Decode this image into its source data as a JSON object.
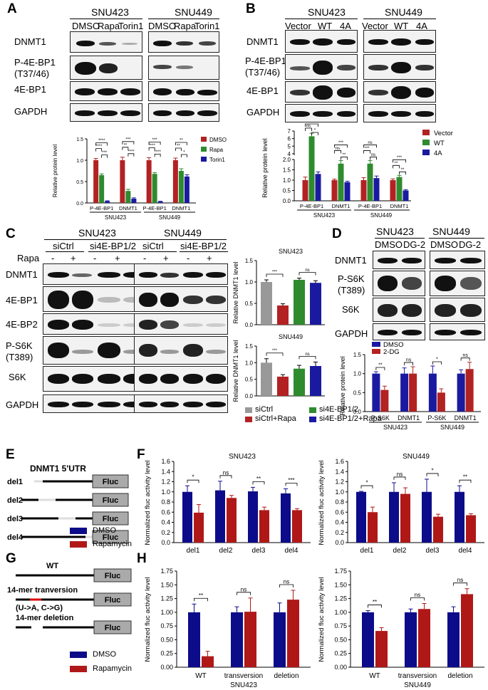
{
  "panel_letters": [
    "A",
    "B",
    "C",
    "D",
    "E",
    "F",
    "G",
    "H"
  ],
  "colors": {
    "red": "#b22222",
    "green": "#2e8b2e",
    "blue": "#1a1aa0",
    "gray": "#999999",
    "darkred": "#b01818",
    "navy": "#0c0c8a"
  },
  "panelA": {
    "cells": [
      "SNU423",
      "SNU449"
    ],
    "treatments": [
      "DMSO",
      "Rapa",
      "Torin1",
      "DMSO",
      "Rapa",
      "Torin1"
    ],
    "rows": [
      "DNMT1",
      "P-4E-BP1\n(T37/46)",
      "4E-BP1",
      "GAPDH"
    ],
    "legend": [
      "DMSO",
      "Rapa",
      "Torin1"
    ],
    "xgroups": [
      "P-4E-BP1",
      "DNMT1",
      "P-4E-BP1",
      "DNMT1"
    ],
    "xcells": [
      "SNU423",
      "SNU449"
    ]
  },
  "panelB": {
    "cells": [
      "SNU423",
      "SNU449"
    ],
    "treatments": [
      "Vector",
      "WT",
      "4A",
      "Vector",
      "WT",
      "4A"
    ],
    "rows": [
      "DNMT1",
      "P-4E-BP1\n(T37/46)",
      "4E-BP1",
      "GAPDH"
    ],
    "legend": [
      "Vector",
      "WT",
      "4A"
    ],
    "xgroups": [
      "P-4E-BP1",
      "DNMT1",
      "P-4E-BP1",
      "DNMT1"
    ],
    "xcells": [
      "SNU423",
      "SNU449"
    ]
  },
  "panelC": {
    "cells": [
      "SNU423",
      "SNU449"
    ],
    "groups": [
      "siCtrl",
      "si4E-BP1/2",
      "siCtrl",
      "si4E-BP1/2"
    ],
    "rapa_label": "Rapa",
    "rapa_signs": [
      "-",
      "+",
      "-",
      "+",
      "-",
      "+",
      "-",
      "+"
    ],
    "rows": [
      "DNMT1",
      "4E-BP1",
      "4E-BP2",
      "P-S6K\n(T389)",
      "S6K",
      "GAPDH"
    ],
    "chart_titles": [
      "SNU423",
      "SNU449"
    ],
    "legend": [
      "siCtrl",
      "si4E-BP1/2",
      "siCtrl+Rapa",
      "si4E-BP1/2+Rapa"
    ]
  },
  "panelD": {
    "cells": [
      "SNU423",
      "SNU449"
    ],
    "treatments": [
      "DMSO",
      "DG-2",
      "DMSO",
      "DG-2"
    ],
    "rows": [
      "DNMT1",
      "P-S6K\n(T389)",
      "S6K",
      "GAPDH"
    ],
    "legend": [
      "DMSO",
      "2-DG"
    ],
    "xgroups": [
      "P-S6K",
      "DNMT1",
      "P-S6K",
      "DNMT1"
    ],
    "xcells": [
      "SNU423",
      "SNU449"
    ]
  },
  "panelE": {
    "title": "DNMT1 5'UTR",
    "constructs": [
      "del1",
      "del2",
      "del3",
      "del4"
    ],
    "box_label": "Fluc",
    "legend": [
      "DMSO",
      "Rapamycin"
    ]
  },
  "panelG": {
    "labels": [
      "WT",
      "14-mer tranversion",
      "(U->A, C->G)",
      "14-mer deletion"
    ],
    "box_label": "Fluc",
    "legend": [
      "DMSO",
      "Rapamycin"
    ]
  },
  "chart_data": [
    {
      "id": "A",
      "type": "bar",
      "categories": [
        "P-4E-BP1",
        "DNMT1",
        "P-4E-BP1",
        "DNMT1"
      ],
      "series": [
        {
          "name": "DMSO",
          "values": [
            1.0,
            1.0,
            1.0,
            1.0
          ]
        },
        {
          "name": "Rapa",
          "values": [
            0.65,
            0.28,
            0.68,
            0.75
          ]
        },
        {
          "name": "Torin1",
          "values": [
            0.04,
            0.1,
            0.03,
            0.62
          ]
        }
      ],
      "errors": [
        [
          0.04,
          0.07,
          0.06,
          0.05
        ],
        [
          0.03,
          0.04,
          0.03,
          0.05
        ],
        [
          0.01,
          0.02,
          0.01,
          0.04
        ]
      ],
      "ylabel": "Relative protein level",
      "yticks": [
        "0.0",
        "0.5",
        "1.0",
        "1.5"
      ],
      "ylim": [
        0,
        1.5
      ],
      "sig": [
        "****",
        "****",
        "***",
        "***",
        "**",
        "****",
        "***",
        "****",
        "****",
        "**",
        "**",
        "*"
      ]
    },
    {
      "id": "B",
      "type": "bar",
      "categories": [
        "P-4E-BP1",
        "DNMT1",
        "P-4E-BP1",
        "DNMT1"
      ],
      "series": [
        {
          "name": "Vector",
          "values": [
            1.0,
            1.0,
            1.0,
            1.0
          ]
        },
        {
          "name": "WT",
          "values": [
            6.3,
            1.8,
            1.8,
            1.15
          ]
        },
        {
          "name": "4A",
          "values": [
            1.3,
            0.9,
            1.1,
            0.5
          ]
        }
      ],
      "errors": [
        [
          0.15,
          0.05,
          0.12,
          0.06
        ],
        [
          0.4,
          0.15,
          0.15,
          0.08
        ],
        [
          0.1,
          0.05,
          0.1,
          0.04
        ]
      ],
      "ylabel": "Relative protein level",
      "yticks": [
        "0.0",
        "0.5",
        "1.0",
        "1.5",
        "2.0",
        "4",
        "5",
        "6",
        "7"
      ],
      "broken_axis": true,
      "sig": [
        "***",
        "ns",
        "*",
        "***",
        "ns",
        "**",
        "ns",
        "***",
        "ns",
        "***",
        "**",
        "**"
      ]
    },
    {
      "id": "C1",
      "type": "bar",
      "title": "SNU423",
      "categories": [
        "siCtrl",
        "siCtrl+Rapa",
        "si4E-BP1/2",
        "si4E-BP1/2+Rapa"
      ],
      "values": [
        1.0,
        0.45,
        1.05,
        0.98
      ],
      "errors": [
        0.05,
        0.04,
        0.04,
        0.05
      ],
      "ylabel": "Relative DNMT1 level",
      "yticks": [
        "0.0",
        "0.5",
        "1.0",
        "1.5"
      ],
      "ylim": [
        0,
        1.5
      ],
      "sig": [
        "***",
        "ns"
      ]
    },
    {
      "id": "C2",
      "type": "bar",
      "title": "SNU449",
      "categories": [
        "siCtrl",
        "siCtrl+Rapa",
        "si4E-BP1/2",
        "si4E-BP1/2+Rapa"
      ],
      "values": [
        1.0,
        0.58,
        0.82,
        0.9
      ],
      "errors": [
        0.12,
        0.06,
        0.1,
        0.12
      ],
      "ylabel": "Relative DNMT1 level",
      "yticks": [
        "0.0",
        "0.5",
        "1.0",
        "1.5"
      ],
      "ylim": [
        0,
        1.5
      ],
      "sig": [
        "***",
        "ns"
      ]
    },
    {
      "id": "D",
      "type": "bar",
      "categories": [
        "P-S6K",
        "DNMT1",
        "P-S6K",
        "DNMT1"
      ],
      "series": [
        {
          "name": "DMSO",
          "values": [
            1.0,
            1.0,
            1.0,
            1.0
          ]
        },
        {
          "name": "2-DG",
          "values": [
            0.57,
            1.0,
            0.5,
            1.12
          ]
        }
      ],
      "errors": [
        [
          0.05,
          0.15,
          0.2,
          0.1
        ],
        [
          0.1,
          0.18,
          0.1,
          0.18
        ]
      ],
      "ylabel": "Relative protein level",
      "yticks": [
        "0.0",
        "0.5",
        "1.0",
        "1.5"
      ],
      "ylim": [
        0,
        1.5
      ],
      "sig": [
        "**",
        "ns",
        "*",
        "ns"
      ]
    },
    {
      "id": "F1",
      "type": "bar",
      "title": "SNU423",
      "categories": [
        "del1",
        "del2",
        "del3",
        "del4"
      ],
      "series": [
        {
          "name": "DMSO",
          "values": [
            1.0,
            1.03,
            1.01,
            0.97
          ]
        },
        {
          "name": "Rapamycin",
          "values": [
            0.59,
            0.88,
            0.64,
            0.64
          ]
        }
      ],
      "errors": [
        [
          0.12,
          0.18,
          0.08,
          0.09
        ],
        [
          0.16,
          0.05,
          0.06,
          0.03
        ]
      ],
      "ylabel": "Normalized fluc activity  level",
      "yticks": [
        "0.0",
        "0.2",
        "0.4",
        "0.6",
        "0.8",
        "1.0",
        "1.2",
        "1.4",
        "1.6"
      ],
      "ylim": [
        0,
        1.6
      ],
      "sig": [
        "*",
        "ns",
        "**",
        "***"
      ]
    },
    {
      "id": "F2",
      "type": "bar",
      "title": "SNU449",
      "categories": [
        "del1",
        "del2",
        "del3",
        "del4"
      ],
      "series": [
        {
          "name": "DMSO",
          "values": [
            1.0,
            1.0,
            1.0,
            1.0
          ]
        },
        {
          "name": "Rapamycin",
          "values": [
            0.6,
            0.96,
            0.51,
            0.54
          ]
        }
      ],
      "errors": [
        [
          0.01,
          0.18,
          0.25,
          0.12
        ],
        [
          0.1,
          0.12,
          0.05,
          0.03
        ]
      ],
      "ylabel": "Normalized fluc activity  level",
      "yticks": [
        "0.0",
        "0.2",
        "0.4",
        "0.6",
        "0.8",
        "1.0",
        "1.2",
        "1.4",
        "1.6"
      ],
      "ylim": [
        0,
        1.6
      ],
      "sig": [
        "*",
        "ns",
        "*",
        "**"
      ]
    },
    {
      "id": "H1",
      "type": "bar",
      "xtitle": "SNU423",
      "categories": [
        "WT",
        "transversion",
        "deletion"
      ],
      "series": [
        {
          "name": "DMSO",
          "values": [
            1.0,
            1.0,
            1.0
          ]
        },
        {
          "name": "Rapamycin",
          "values": [
            0.2,
            1.01,
            1.23
          ]
        }
      ],
      "errors": [
        [
          0.15,
          0.1,
          0.17
        ],
        [
          0.09,
          0.25,
          0.17
        ]
      ],
      "ylabel": "Normalized fluc activity  level",
      "yticks": [
        "0.00",
        "0.25",
        "0.50",
        "0.75",
        "1.00",
        "1.25",
        "1.50",
        "1.75"
      ],
      "ylim": [
        0,
        1.75
      ],
      "sig": [
        "**",
        "ns",
        "ns"
      ]
    },
    {
      "id": "H2",
      "type": "bar",
      "xtitle": "SNU449",
      "categories": [
        "WT",
        "transversion",
        "deletion"
      ],
      "series": [
        {
          "name": "DMSO",
          "values": [
            1.0,
            1.0,
            1.0
          ]
        },
        {
          "name": "Rapamycin",
          "values": [
            0.66,
            1.06,
            1.33
          ]
        }
      ],
      "errors": [
        [
          0.03,
          0.06,
          0.1
        ],
        [
          0.06,
          0.1,
          0.1
        ]
      ],
      "ylabel": "Normalized fluc activity  level",
      "yticks": [
        "0.00",
        "0.25",
        "0.50",
        "0.75",
        "1.00",
        "1.25",
        "1.50",
        "1.75"
      ],
      "ylim": [
        0,
        1.75
      ],
      "sig": [
        "**",
        "ns",
        "ns"
      ]
    }
  ]
}
